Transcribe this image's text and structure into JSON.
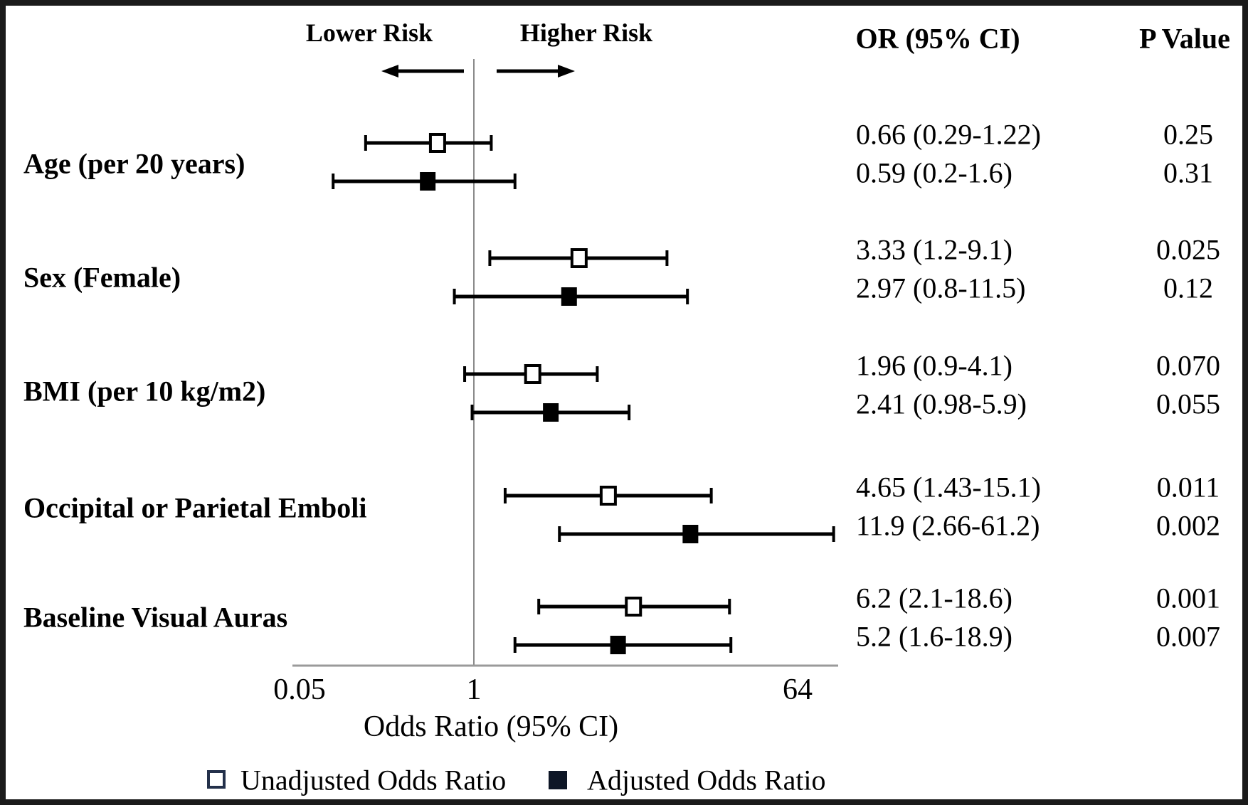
{
  "header": {
    "lower_risk": "Lower Risk",
    "higher_risk": "Higher Risk",
    "or_column": "OR (95% CI)",
    "p_column": "P Value"
  },
  "axis": {
    "label": "Odds Ratio (95% CI)",
    "ticks": [
      "0.05",
      "1",
      "64"
    ],
    "tick_values": [
      0.05,
      1,
      64
    ],
    "reference_line_value": 1,
    "scale": "log"
  },
  "legend": {
    "unadjusted": {
      "marker": "open-square",
      "label": "Unadjusted Odds Ratio"
    },
    "adjusted": {
      "marker": "filled-square",
      "label": "Adjusted Odds Ratio"
    }
  },
  "colors": {
    "marker_black": "#000000",
    "reference_line_gray": "#8a8a8a",
    "axis_gray": "#9a9a9a"
  },
  "chart_data": {
    "type": "forest",
    "x_scale": "log",
    "xlim": [
      0.05,
      64
    ],
    "x_ticks": [
      0.05,
      1,
      64
    ],
    "xlabel": "Odds Ratio (95% CI)",
    "direction_annotations": {
      "left": "Lower Risk",
      "right": "Higher Risk"
    },
    "series_styles": {
      "unadjusted": "open-square",
      "adjusted": "filled-square"
    },
    "groups": [
      {
        "label": "Age (per 20 years)",
        "unadjusted": {
          "or": 0.66,
          "ci_low": 0.29,
          "ci_high": 1.22,
          "or_text": "0.66 (0.29-1.22)",
          "p": "0.25"
        },
        "adjusted": {
          "or": 0.59,
          "ci_low": 0.2,
          "ci_high": 1.6,
          "or_text": "0.59 (0.2-1.6)",
          "p": "0.31"
        }
      },
      {
        "label": "Sex (Female)",
        "unadjusted": {
          "or": 3.33,
          "ci_low": 1.2,
          "ci_high": 9.1,
          "or_text": "3.33 (1.2-9.1)",
          "p": "0.025"
        },
        "adjusted": {
          "or": 2.97,
          "ci_low": 0.8,
          "ci_high": 11.5,
          "or_text": "2.97 (0.8-11.5)",
          "p": "0.12"
        }
      },
      {
        "label": "BMI (per 10 kg/m2)",
        "unadjusted": {
          "or": 1.96,
          "ci_low": 0.9,
          "ci_high": 4.1,
          "or_text": "1.96 (0.9-4.1)",
          "p": "0.070"
        },
        "adjusted": {
          "or": 2.41,
          "ci_low": 0.98,
          "ci_high": 5.9,
          "or_text": "2.41 (0.98-5.9)",
          "p": "0.055"
        }
      },
      {
        "label": "Occipital or Parietal Emboli",
        "unadjusted": {
          "or": 4.65,
          "ci_low": 1.43,
          "ci_high": 15.1,
          "or_text": "4.65 (1.43-15.1)",
          "p": "0.011"
        },
        "adjusted": {
          "or": 11.9,
          "ci_low": 2.66,
          "ci_high": 61.2,
          "or_text": "11.9 (2.66-61.2)",
          "p": "0.002"
        }
      },
      {
        "label": "Baseline Visual Auras",
        "unadjusted": {
          "or": 6.2,
          "ci_low": 2.1,
          "ci_high": 18.6,
          "or_text": "6.2 (2.1-18.6)",
          "p": "0.001"
        },
        "adjusted": {
          "or": 5.2,
          "ci_low": 1.6,
          "ci_high": 18.9,
          "or_text": "5.2 (1.6-18.9)",
          "p": "0.007"
        }
      }
    ]
  }
}
